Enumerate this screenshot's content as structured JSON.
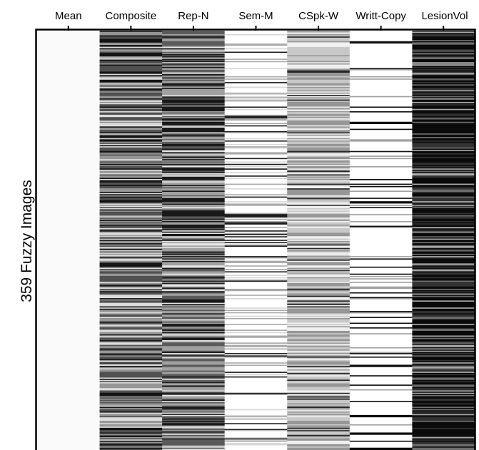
{
  "chart_data": {
    "type": "heatmap",
    "ylabel": "359 Fuzzy Images",
    "columns": [
      "Mean",
      "Composite",
      "Rep-N",
      "Sem-M",
      "CSpk-W",
      "Writt-Copy",
      "LesionVol"
    ],
    "rows": 359,
    "colormap": "grayscale (white = low, black = high)",
    "column_characteristics": [
      {
        "name": "Mean",
        "pattern": "uniform near-white"
      },
      {
        "name": "Composite",
        "pattern": "mixed gray and black stripes"
      },
      {
        "name": "Rep-N",
        "pattern": "mixed gray, dark in middle rows"
      },
      {
        "name": "Sem-M",
        "pattern": "mostly white with sparse gray/black stripes"
      },
      {
        "name": "CSpk-W",
        "pattern": "mostly light to mid gray stripes"
      },
      {
        "name": "Writt-Copy",
        "pattern": "mostly white with thin black lines"
      },
      {
        "name": "LesionVol",
        "pattern": "mostly dark/black"
      }
    ]
  }
}
